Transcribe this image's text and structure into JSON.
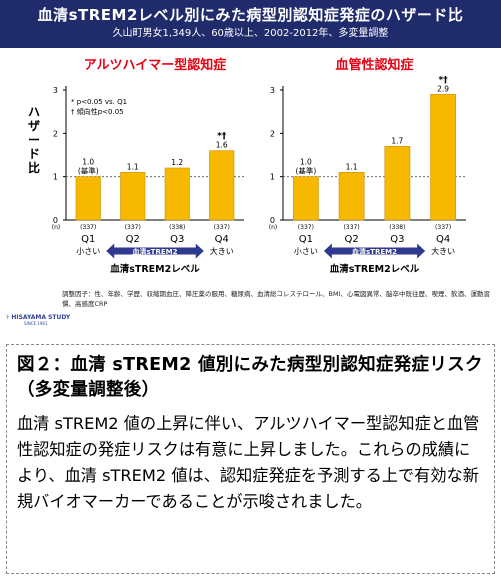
{
  "header": {
    "title": "血清sTREM2レベル別にみた病型別認知症発症のハザード比",
    "subtitle": "久山町男女1,349人、60歳以上、2002-2012年、多変量調整"
  },
  "colors": {
    "header_bg": "#1f2b6b",
    "bar": "#f7b800",
    "bar_edge": "#c98f00",
    "chart_title": "#e60012",
    "arrow": "#2e3a8f"
  },
  "chart_data": [
    {
      "type": "bar",
      "title": "アルツハイマー型認知症",
      "ylabel": "ハザード比",
      "ylim": [
        0,
        3
      ],
      "yticks": [
        "0",
        "1",
        "2",
        "3"
      ],
      "reference_line": 1,
      "categories": [
        "Q1",
        "Q2",
        "Q3",
        "Q4"
      ],
      "values": [
        1.0,
        1.1,
        1.2,
        1.6
      ],
      "value_labels": [
        "1.0",
        "1.1",
        "1.2",
        "1.6"
      ],
      "q1_note": "(基準)",
      "markers": [
        "",
        "",
        "",
        "*†"
      ],
      "n_label": "(n)",
      "n": [
        "(337)",
        "(337)",
        "(338)",
        "(337)"
      ],
      "legend": [
        "*  p<0.05 vs. Q1",
        "†  傾向性p<0.05"
      ],
      "low_label": "小さい",
      "high_label": "大きい",
      "arrow_label": "血清sTREM2",
      "xlabel": "血清sTREM2レベル"
    },
    {
      "type": "bar",
      "title": "血管性認知症",
      "ylim": [
        0,
        3
      ],
      "yticks": [
        "0",
        "1",
        "2",
        "3"
      ],
      "reference_line": 1,
      "categories": [
        "Q1",
        "Q2",
        "Q3",
        "Q4"
      ],
      "values": [
        1.0,
        1.1,
        1.7,
        2.9
      ],
      "value_labels": [
        "1.0",
        "1.1",
        "1.7",
        "2.9"
      ],
      "q1_note": "(基準)",
      "markers": [
        "",
        "",
        "",
        "*†"
      ],
      "n_label": "(n)",
      "n": [
        "(337)",
        "(337)",
        "(338)",
        "(337)"
      ],
      "low_label": "小さい",
      "high_label": "大きい",
      "arrow_label": "血清sTREM2",
      "xlabel": "血清sTREM2レベル"
    }
  ],
  "footnote": "調整因子：性、年齢、学歴、収縮期血圧、降圧薬の服用、糖尿病、血清総コレステロール、BMI、心電図異常、脳卒中既往歴、喫煙、飲酒、運動習慣、高感度CRP",
  "logo": {
    "name": "HISAYAMA STUDY",
    "sub": "SINCE 1961"
  },
  "caption": {
    "title": "図２：血清 sTREM2 値別にみた病型別認知症発症リスク（多変量調整後）",
    "body": "血清 sTREM2 値の上昇に伴い、アルツハイマー型認知症と血管性認知症の発症リスクは有意に上昇しました。これらの成績により、血清 sTREM2 値は、認知症発症を予測する上で有効な新規バイオマーカーであることが示唆されました。"
  }
}
